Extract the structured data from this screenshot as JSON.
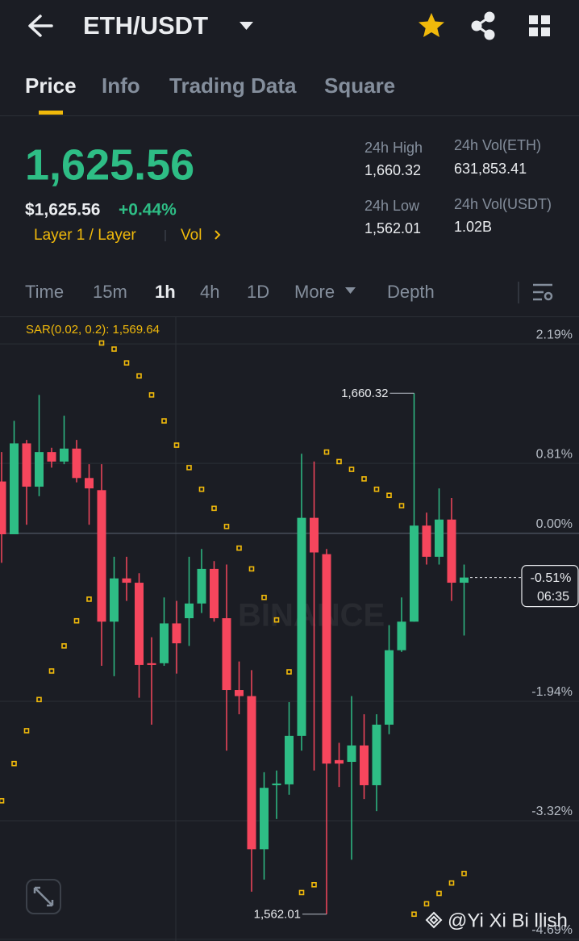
{
  "header": {
    "title": "ETH/USDT"
  },
  "tabs": [
    "Price",
    "Info",
    "Trading Data",
    "Square"
  ],
  "price": {
    "last": "1,625.56",
    "usd": "$1,625.56",
    "change": "+0.44%",
    "tags": "Layer 1 / Layer",
    "vol": "Vol"
  },
  "stats": [
    {
      "label": "24h High",
      "value": "1,660.32"
    },
    {
      "label": "24h Vol(ETH)",
      "value": "631,853.41"
    },
    {
      "label": "24h Low",
      "value": "1,562.01"
    },
    {
      "label": "24h Vol(USDT)",
      "value": "1.02B"
    }
  ],
  "intervals": [
    "Time",
    "15m",
    "1h",
    "4h",
    "1D",
    "More",
    "Depth"
  ],
  "chart_data": {
    "type": "candlestick",
    "indicator_label": "SAR(0.02, 0.2): 1,569.64",
    "up_color": "#2ebd85",
    "down_color": "#f6465d",
    "sar_color": "#f0b90b",
    "open": [
      0.6,
      -0.01,
      1.04,
      0.54,
      0.94,
      0.83,
      0.98,
      0.64,
      0.5,
      -1.02,
      -0.52,
      -0.57,
      -1.5,
      -1.5,
      -1.04,
      -0.98,
      -0.81,
      -0.41,
      -0.98,
      -1.81,
      -1.88,
      -3.65,
      -2.91,
      -2.9,
      -2.34,
      0.18,
      -0.24,
      -2.62,
      -2.64,
      -2.45,
      -2.91,
      -2.21,
      -1.35,
      -1.02,
      0.09,
      -0.27,
      0.16,
      -0.57
    ],
    "close": [
      -0.01,
      1.04,
      0.54,
      0.94,
      0.83,
      0.98,
      0.64,
      0.52,
      -1.02,
      -0.52,
      -0.57,
      -1.52,
      -1.52,
      -1.04,
      -1.27,
      -0.81,
      -0.41,
      -0.98,
      -1.81,
      -1.88,
      -3.65,
      -2.94,
      -2.89,
      -2.34,
      0.18,
      -0.22,
      -2.66,
      -2.66,
      -2.45,
      -2.91,
      -2.21,
      -1.35,
      -1.02,
      0.09,
      -0.27,
      0.16,
      -0.57,
      -0.51
    ],
    "high": [
      0.94,
      1.3,
      1.08,
      1.6,
      0.99,
      1.36,
      1.08,
      0.8,
      0.8,
      -0.27,
      -0.27,
      -0.46,
      -1.2,
      -0.74,
      -0.78,
      -0.27,
      -0.18,
      -0.32,
      -0.36,
      -1.48,
      -1.58,
      -2.76,
      -2.74,
      -1.95,
      0.92,
      0.83,
      -0.18,
      -2.42,
      -1.88,
      -2.09,
      -2.09,
      -1.06,
      -0.74,
      1.62,
      0.24,
      0.52,
      0.41,
      -0.36
    ],
    "low": [
      -0.34,
      -0.01,
      0.1,
      0.43,
      0.76,
      0.8,
      0.59,
      0.1,
      -1.53,
      -1.65,
      -0.78,
      -1.9,
      -2.21,
      -1.53,
      -1.62,
      -1.3,
      -0.92,
      -1.02,
      -2.51,
      -2.09,
      -4.14,
      -4.0,
      -3.3,
      -3.02,
      -2.51,
      -2.74,
      -4.4,
      -2.93,
      -3.77,
      -3.07,
      -3.21,
      -2.32,
      -1.37,
      -1.02,
      -0.36,
      -0.36,
      -0.78,
      -1.18
    ],
    "sar": [
      -3.09,
      -2.66,
      -2.28,
      -1.92,
      -1.59,
      -1.3,
      -1.01,
      -0.76,
      2.2,
      2.13,
      1.97,
      1.82,
      1.6,
      1.3,
      1.02,
      0.76,
      0.51,
      0.29,
      0.08,
      -0.17,
      -0.41,
      -0.74,
      -1.0,
      -1.6,
      -4.15,
      -4.06,
      0.94,
      0.83,
      0.74,
      0.63,
      0.51,
      0.44,
      0.32,
      -4.4,
      -4.28,
      -4.16,
      -4.04,
      -3.93
    ],
    "ylim": [
      -4.71,
      2.48
    ],
    "yticks": [
      {
        "value": 2.19,
        "label": "2.19%"
      },
      {
        "value": 0.81,
        "label": "0.81%"
      },
      {
        "value": 0,
        "label": "0.00%"
      },
      {
        "value": -1.94,
        "label": "-1.94%"
      },
      {
        "value": -3.32,
        "label": "-3.32%"
      },
      {
        "value": -4.69,
        "label": "-4.69%"
      }
    ],
    "grid": true,
    "high_label": "1,660.32",
    "low_label": "1,562.01",
    "last": {
      "value": -0.51,
      "label": "-0.51%"
    },
    "countdown": "06:35",
    "watermark": "BINANCE"
  },
  "footer": {
    "credit": "@Yi Xi Bi llish"
  }
}
